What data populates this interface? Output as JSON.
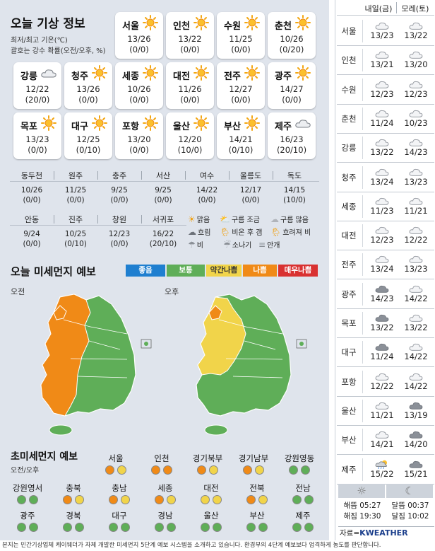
{
  "title": "오늘 기상 정보",
  "note_line1": "최저/최고 기온(℃)",
  "note_line2": "괄호는 강수 확률(오전/오후, %)",
  "cards": [
    {
      "city": "서울",
      "temp": "13/26",
      "rain": "(0/0)",
      "icon": "sun-icon"
    },
    {
      "city": "인천",
      "temp": "13/22",
      "rain": "(0/0)",
      "icon": "sun-icon"
    },
    {
      "city": "수원",
      "temp": "11/25",
      "rain": "(0/0)",
      "icon": "sun-icon"
    },
    {
      "city": "춘천",
      "temp": "10/26",
      "rain": "(0/20)",
      "icon": "sun-icon"
    },
    {
      "city": "강릉",
      "temp": "12/22",
      "rain": "(20/0)",
      "icon": "cloud-icon"
    },
    {
      "city": "청주",
      "temp": "13/26",
      "rain": "(0/0)",
      "icon": "sun-icon"
    },
    {
      "city": "세종",
      "temp": "10/26",
      "rain": "(0/0)",
      "icon": "sun-icon"
    },
    {
      "city": "대전",
      "temp": "11/26",
      "rain": "(0/0)",
      "icon": "sun-icon"
    },
    {
      "city": "전주",
      "temp": "12/27",
      "rain": "(0/0)",
      "icon": "sun-icon"
    },
    {
      "city": "광주",
      "temp": "14/27",
      "rain": "(0/0)",
      "icon": "sun-icon"
    },
    {
      "city": "목포",
      "temp": "13/23",
      "rain": "(0/0)",
      "icon": "sun-icon"
    },
    {
      "city": "대구",
      "temp": "12/25",
      "rain": "(0/10)",
      "icon": "sun-icon"
    },
    {
      "city": "포항",
      "temp": "13/20",
      "rain": "(0/0)",
      "icon": "sun-icon"
    },
    {
      "city": "울산",
      "temp": "12/20",
      "rain": "(10/0)",
      "icon": "sun-icon"
    },
    {
      "city": "부산",
      "temp": "14/21",
      "rain": "(0/10)",
      "icon": "sun-icon"
    },
    {
      "city": "제주",
      "temp": "16/23",
      "rain": "(20/10)",
      "icon": "cloud-icon"
    }
  ],
  "small_row1": [
    {
      "city": "동두천",
      "temp": "10/26",
      "rain": "(0/0)"
    },
    {
      "city": "원주",
      "temp": "11/25",
      "rain": "(0/0)"
    },
    {
      "city": "충주",
      "temp": "9/25",
      "rain": "(0/0)"
    },
    {
      "city": "서산",
      "temp": "9/25",
      "rain": "(0/0)"
    },
    {
      "city": "여수",
      "temp": "14/22",
      "rain": "(0/0)"
    },
    {
      "city": "울릉도",
      "temp": "12/17",
      "rain": "(0/0)"
    },
    {
      "city": "독도",
      "temp": "14/15",
      "rain": "(10/0)"
    }
  ],
  "small_row2": [
    {
      "city": "안동",
      "temp": "9/24",
      "rain": "(0/0)"
    },
    {
      "city": "진주",
      "temp": "10/25",
      "rain": "(0/10)"
    },
    {
      "city": "창원",
      "temp": "12/23",
      "rain": "(0/0)"
    },
    {
      "city": "서귀포",
      "temp": "16/22",
      "rain": "(20/10)"
    }
  ],
  "legend": {
    "sunny": "맑음",
    "few_clouds": "구름 조금",
    "mostly_cloudy": "구름 많음",
    "overcast": "흐림",
    "clear_after_rain": "비온 후 갬",
    "rain_later": "흐려져 비",
    "rain": "비",
    "shower": "소나기",
    "fog": "안개"
  },
  "dust_title": "오늘 미세먼지 예보",
  "levels": [
    {
      "label": "좋음",
      "color": "#1f7fd0"
    },
    {
      "label": "보통",
      "color": "#5fae58"
    },
    {
      "label": "약간나쁨",
      "color": "#f1d44a"
    },
    {
      "label": "나쁨",
      "color": "#f08a17"
    },
    {
      "label": "매우나쁨",
      "color": "#d93131"
    }
  ],
  "am_label": "오전",
  "pm_label": "오후",
  "ultra_title": "초미세먼지 예보",
  "ultra_sub": "오전/오후",
  "ultra": [
    {
      "city": "서울",
      "am": "#f08a17",
      "pm": "#f1d44a"
    },
    {
      "city": "인천",
      "am": "#f08a17",
      "pm": "#f08a17"
    },
    {
      "city": "경기북부",
      "am": "#f08a17",
      "pm": "#f1d44a"
    },
    {
      "city": "경기남부",
      "am": "#f08a17",
      "pm": "#f1d44a"
    },
    {
      "city": "강원영동",
      "am": "#5fae58",
      "pm": "#5fae58"
    },
    {
      "city": "강원영서",
      "am": "#5fae58",
      "pm": "#5fae58"
    },
    {
      "city": "충북",
      "am": "#f08a17",
      "pm": "#f1d44a"
    },
    {
      "city": "충남",
      "am": "#f08a17",
      "pm": "#f1d44a"
    },
    {
      "city": "세종",
      "am": "#f08a17",
      "pm": "#f1d44a"
    },
    {
      "city": "대전",
      "am": "#f1d44a",
      "pm": "#f1d44a"
    },
    {
      "city": "전북",
      "am": "#f08a17",
      "pm": "#f1d44a"
    },
    {
      "city": "전남",
      "am": "#5fae58",
      "pm": "#5fae58"
    },
    {
      "city": "광주",
      "am": "#5fae58",
      "pm": "#5fae58"
    },
    {
      "city": "경북",
      "am": "#5fae58",
      "pm": "#5fae58"
    },
    {
      "city": "대구",
      "am": "#5fae58",
      "pm": "#5fae58"
    },
    {
      "city": "경남",
      "am": "#5fae58",
      "pm": "#5fae58"
    },
    {
      "city": "울산",
      "am": "#5fae58",
      "pm": "#5fae58"
    },
    {
      "city": "부산",
      "am": "#5fae58",
      "pm": "#5fae58"
    },
    {
      "city": "제주",
      "am": "#5fae58",
      "pm": "#5fae58"
    }
  ],
  "forecast_header": {
    "day1": "내일(금)",
    "day2": "모레(토)"
  },
  "forecast": [
    {
      "city": "서울",
      "d1": "13/23",
      "d2": "13/22",
      "i1": "light",
      "i2": "light"
    },
    {
      "city": "인천",
      "d1": "13/21",
      "d2": "13/20",
      "i1": "light",
      "i2": "light"
    },
    {
      "city": "수원",
      "d1": "12/23",
      "d2": "12/23",
      "i1": "light",
      "i2": "light"
    },
    {
      "city": "춘천",
      "d1": "11/24",
      "d2": "10/23",
      "i1": "light",
      "i2": "light"
    },
    {
      "city": "강릉",
      "d1": "13/22",
      "d2": "14/23",
      "i1": "light",
      "i2": "light"
    },
    {
      "city": "청주",
      "d1": "13/24",
      "d2": "13/23",
      "i1": "light",
      "i2": "light"
    },
    {
      "city": "세종",
      "d1": "11/23",
      "d2": "11/21",
      "i1": "light",
      "i2": "light"
    },
    {
      "city": "대전",
      "d1": "12/23",
      "d2": "12/22",
      "i1": "light",
      "i2": "light"
    },
    {
      "city": "전주",
      "d1": "13/24",
      "d2": "13/23",
      "i1": "light",
      "i2": "light"
    },
    {
      "city": "광주",
      "d1": "14/23",
      "d2": "14/22",
      "i1": "dark",
      "i2": "light"
    },
    {
      "city": "목포",
      "d1": "13/22",
      "d2": "13/22",
      "i1": "dark",
      "i2": "light"
    },
    {
      "city": "대구",
      "d1": "11/24",
      "d2": "14/22",
      "i1": "dark",
      "i2": "light"
    },
    {
      "city": "포항",
      "d1": "12/22",
      "d2": "14/22",
      "i1": "light",
      "i2": "light"
    },
    {
      "city": "울산",
      "d1": "11/21",
      "d2": "13/19",
      "i1": "light",
      "i2": "dark"
    },
    {
      "city": "부산",
      "d1": "14/21",
      "d2": "14/20",
      "i1": "light",
      "i2": "dark"
    },
    {
      "city": "제주",
      "d1": "15/22",
      "d2": "15/21",
      "i1": "rain",
      "i2": "dark"
    }
  ],
  "sun": {
    "rise": "해뜸 05:27",
    "set": "해짐 19:30"
  },
  "moon": {
    "rise": "달뜸 00:37",
    "set": "달짐 10:02"
  },
  "source_prefix": "자료=",
  "source_brand": "KWEATHER",
  "footer": "본지는 민간기상업체 케이웨더가 자체 개발한 미세먼지 5단계 예보 시스템을 소개하고 있습니다. 환경부의 4단계 예보보다 엄격하게 농도를 판단합니다."
}
